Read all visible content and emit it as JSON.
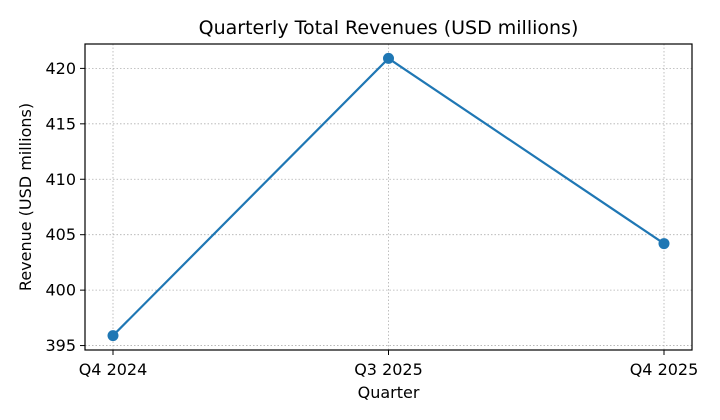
{
  "chart_data": {
    "type": "line",
    "title": "Quarterly Total Revenues (USD millions)",
    "xlabel": "Quarter",
    "ylabel": "Revenue (USD millions)",
    "categories": [
      "Q4 2024",
      "Q3 2025",
      "Q4 2025"
    ],
    "series": [
      {
        "values": [
          395.9,
          420.9,
          404.2
        ],
        "color": "#1f77b4",
        "marker": "circle"
      }
    ],
    "ylim": [
      394.6,
      422.2
    ],
    "yticks": [
      395,
      400,
      405,
      410,
      415,
      420
    ],
    "grid": true,
    "legend": "none"
  }
}
